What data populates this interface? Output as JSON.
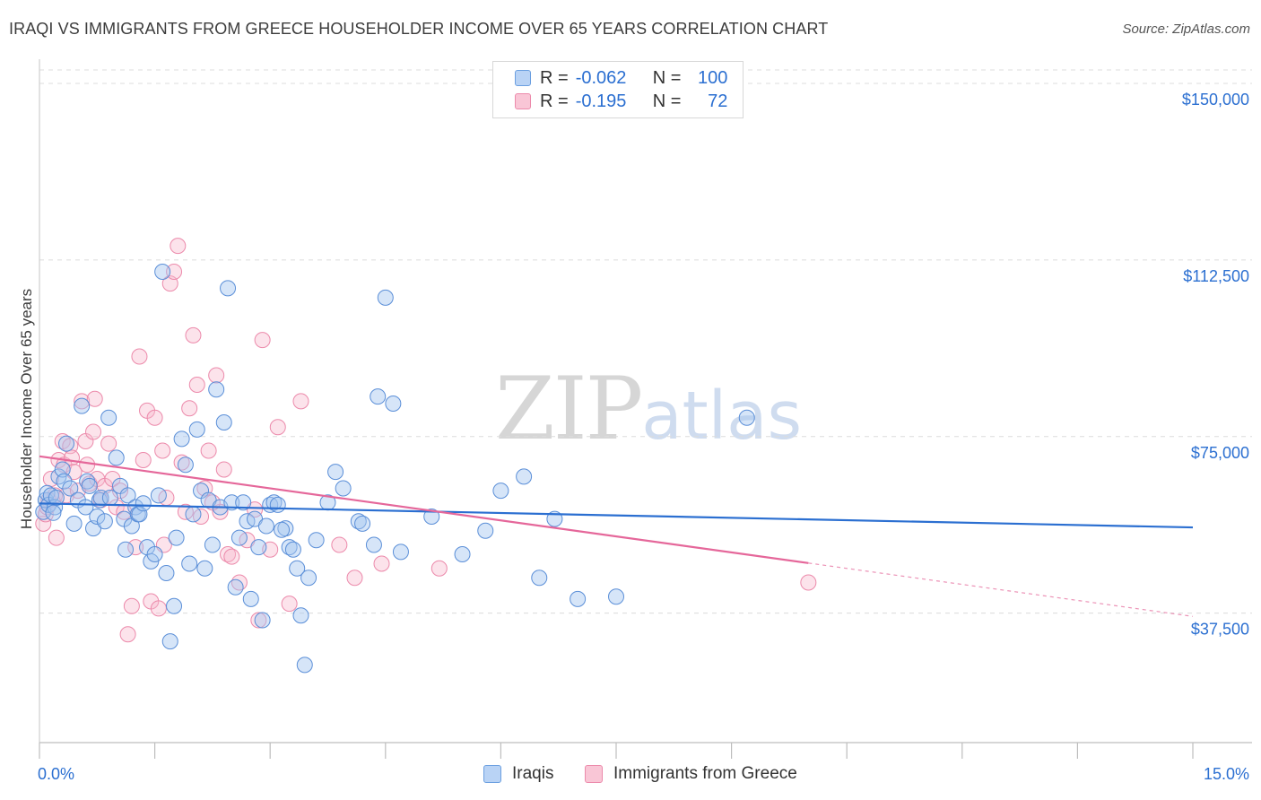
{
  "header": {
    "title": "IRAQI VS IMMIGRANTS FROM GREECE HOUSEHOLDER INCOME OVER 65 YEARS CORRELATION CHART",
    "source": "Source: ZipAtlas.com"
  },
  "watermark": {
    "zip": "ZIP",
    "atlas": "atlas"
  },
  "legend": {
    "r_label": "R =",
    "n_label": "N =",
    "rows": [
      {
        "r": "-0.062",
        "n": "100",
        "fill": "#b9d3f5",
        "stroke": "#6b9fe0"
      },
      {
        "r": "-0.195",
        "n": "72",
        "fill": "#f9c6d6",
        "stroke": "#ec8aab"
      }
    ]
  },
  "bottom_legend": [
    {
      "label": "Iraqis",
      "fill": "#b9d3f5",
      "stroke": "#6b9fe0"
    },
    {
      "label": "Immigrants from Greece",
      "fill": "#f9c6d6",
      "stroke": "#ec8aab"
    }
  ],
  "colors": {
    "blue_fill": "rgba(165,197,240,0.45)",
    "blue_stroke": "#5b8fd8",
    "blue_line": "#2b6fd1",
    "pink_fill": "rgba(248,184,206,0.40)",
    "pink_stroke": "#ec8aab",
    "pink_line": "#e5679a",
    "axis_text": "#2b6fd1",
    "grid": "#dcdcdc"
  },
  "chart_data": {
    "type": "scatter",
    "title": "IRAQI VS IMMIGRANTS FROM GREECE HOUSEHOLDER INCOME OVER 65 YEARS CORRELATION CHART",
    "xlabel": "",
    "ylabel": "Householder Income Over 65 years",
    "xlim": [
      0,
      15
    ],
    "ylim": [
      10000,
      154000
    ],
    "x_tick_labels": [
      "0.0%",
      "15.0%"
    ],
    "y_ticks": [
      37500,
      75000,
      112500,
      150000
    ],
    "y_tick_labels": [
      "$37,500",
      "$75,000",
      "$112,500",
      "$150,000"
    ],
    "grid": true,
    "series": [
      {
        "name": "Iraqis",
        "r": -0.062,
        "n": 100,
        "trend": {
          "x": [
            0,
            15
          ],
          "y": [
            60800,
            55700
          ],
          "solid_to": 15
        },
        "points": [
          [
            0.05,
            59000
          ],
          [
            0.08,
            61500
          ],
          [
            0.1,
            63000
          ],
          [
            0.12,
            60500
          ],
          [
            0.15,
            62500
          ],
          [
            0.2,
            60000
          ],
          [
            0.22,
            62000
          ],
          [
            0.25,
            66500
          ],
          [
            0.3,
            68000
          ],
          [
            0.32,
            65500
          ],
          [
            0.35,
            73500
          ],
          [
            0.4,
            64000
          ],
          [
            0.45,
            56500
          ],
          [
            0.5,
            61500
          ],
          [
            0.55,
            81500
          ],
          [
            0.6,
            60000
          ],
          [
            0.62,
            65500
          ],
          [
            0.65,
            64500
          ],
          [
            0.7,
            55500
          ],
          [
            0.75,
            58000
          ],
          [
            0.78,
            61500
          ],
          [
            0.8,
            62000
          ],
          [
            0.85,
            57000
          ],
          [
            0.9,
            79000
          ],
          [
            0.92,
            62000
          ],
          [
            1.0,
            70500
          ],
          [
            1.05,
            64500
          ],
          [
            1.1,
            57500
          ],
          [
            1.15,
            62500
          ],
          [
            1.2,
            56000
          ],
          [
            1.25,
            60000
          ],
          [
            1.28,
            58500
          ],
          [
            1.3,
            58500
          ],
          [
            1.4,
            51500
          ],
          [
            1.45,
            48500
          ],
          [
            1.5,
            50000
          ],
          [
            1.55,
            62500
          ],
          [
            1.6,
            110000
          ],
          [
            1.65,
            46000
          ],
          [
            1.7,
            31500
          ],
          [
            1.75,
            39000
          ],
          [
            1.78,
            53500
          ],
          [
            1.85,
            74500
          ],
          [
            1.9,
            69000
          ],
          [
            1.95,
            48000
          ],
          [
            2.0,
            58500
          ],
          [
            2.05,
            76500
          ],
          [
            2.1,
            63500
          ],
          [
            2.15,
            47000
          ],
          [
            2.2,
            61500
          ],
          [
            2.25,
            52000
          ],
          [
            2.3,
            85000
          ],
          [
            2.35,
            60000
          ],
          [
            2.4,
            78000
          ],
          [
            2.45,
            106500
          ],
          [
            2.5,
            61000
          ],
          [
            2.55,
            43000
          ],
          [
            2.6,
            53500
          ],
          [
            2.65,
            61000
          ],
          [
            2.7,
            57000
          ],
          [
            2.75,
            40500
          ],
          [
            2.8,
            57500
          ],
          [
            2.85,
            51500
          ],
          [
            2.9,
            36000
          ],
          [
            3.0,
            60500
          ],
          [
            3.05,
            61000
          ],
          [
            3.1,
            60500
          ],
          [
            3.2,
            55500
          ],
          [
            3.25,
            51500
          ],
          [
            3.3,
            51000
          ],
          [
            3.35,
            47000
          ],
          [
            3.4,
            37000
          ],
          [
            3.45,
            26500
          ],
          [
            3.5,
            45000
          ],
          [
            3.6,
            53000
          ],
          [
            3.75,
            61000
          ],
          [
            3.85,
            67500
          ],
          [
            3.95,
            64000
          ],
          [
            4.15,
            57000
          ],
          [
            4.2,
            56500
          ],
          [
            4.35,
            52000
          ],
          [
            4.4,
            83500
          ],
          [
            4.5,
            104500
          ],
          [
            4.6,
            82000
          ],
          [
            4.7,
            50500
          ],
          [
            5.1,
            58000
          ],
          [
            5.5,
            50000
          ],
          [
            5.8,
            55000
          ],
          [
            6.0,
            63500
          ],
          [
            6.3,
            66500
          ],
          [
            6.5,
            45000
          ],
          [
            6.7,
            57500
          ],
          [
            7.0,
            40500
          ],
          [
            7.5,
            41000
          ],
          [
            9.2,
            79000
          ],
          [
            1.35,
            60800
          ],
          [
            0.18,
            58800
          ],
          [
            2.95,
            56000
          ],
          [
            1.12,
            51000
          ],
          [
            3.15,
            55200
          ]
        ]
      },
      {
        "name": "Immigrants from Greece",
        "r": -0.195,
        "n": 72,
        "trend": {
          "x": [
            0,
            15
          ],
          "y": [
            70800,
            36800
          ],
          "solid_to": 10
        },
        "points": [
          [
            0.05,
            56500
          ],
          [
            0.08,
            58500
          ],
          [
            0.1,
            60000
          ],
          [
            0.12,
            61500
          ],
          [
            0.15,
            66000
          ],
          [
            0.2,
            62500
          ],
          [
            0.22,
            53500
          ],
          [
            0.25,
            70000
          ],
          [
            0.3,
            74000
          ],
          [
            0.32,
            69000
          ],
          [
            0.35,
            62500
          ],
          [
            0.4,
            73000
          ],
          [
            0.42,
            70500
          ],
          [
            0.45,
            67500
          ],
          [
            0.5,
            63500
          ],
          [
            0.55,
            82500
          ],
          [
            0.6,
            74000
          ],
          [
            0.62,
            69000
          ],
          [
            0.65,
            65000
          ],
          [
            0.7,
            76000
          ],
          [
            0.72,
            83000
          ],
          [
            0.75,
            66000
          ],
          [
            0.8,
            61500
          ],
          [
            0.85,
            64500
          ],
          [
            0.9,
            73500
          ],
          [
            0.95,
            66000
          ],
          [
            1.0,
            60000
          ],
          [
            1.05,
            63500
          ],
          [
            1.1,
            59000
          ],
          [
            1.15,
            33000
          ],
          [
            1.2,
            39000
          ],
          [
            1.25,
            51500
          ],
          [
            1.3,
            92000
          ],
          [
            1.35,
            70000
          ],
          [
            1.4,
            80500
          ],
          [
            1.45,
            40000
          ],
          [
            1.5,
            79000
          ],
          [
            1.55,
            38500
          ],
          [
            1.6,
            72000
          ],
          [
            1.65,
            62000
          ],
          [
            1.7,
            107500
          ],
          [
            1.75,
            110000
          ],
          [
            1.8,
            115500
          ],
          [
            1.85,
            69500
          ],
          [
            1.9,
            59000
          ],
          [
            1.95,
            81000
          ],
          [
            2.0,
            96500
          ],
          [
            2.05,
            86000
          ],
          [
            2.1,
            58000
          ],
          [
            2.15,
            64000
          ],
          [
            2.2,
            72000
          ],
          [
            2.3,
            88000
          ],
          [
            2.35,
            59000
          ],
          [
            2.4,
            68000
          ],
          [
            2.45,
            50000
          ],
          [
            2.5,
            49500
          ],
          [
            2.6,
            44000
          ],
          [
            2.7,
            53000
          ],
          [
            2.8,
            59500
          ],
          [
            2.85,
            36000
          ],
          [
            2.9,
            95500
          ],
          [
            3.0,
            51000
          ],
          [
            3.1,
            77000
          ],
          [
            3.25,
            39500
          ],
          [
            3.4,
            82500
          ],
          [
            3.9,
            52000
          ],
          [
            4.1,
            45000
          ],
          [
            4.45,
            48000
          ],
          [
            5.2,
            47000
          ],
          [
            10.0,
            44000
          ],
          [
            1.62,
            52000
          ],
          [
            2.25,
            61000
          ]
        ]
      }
    ]
  }
}
